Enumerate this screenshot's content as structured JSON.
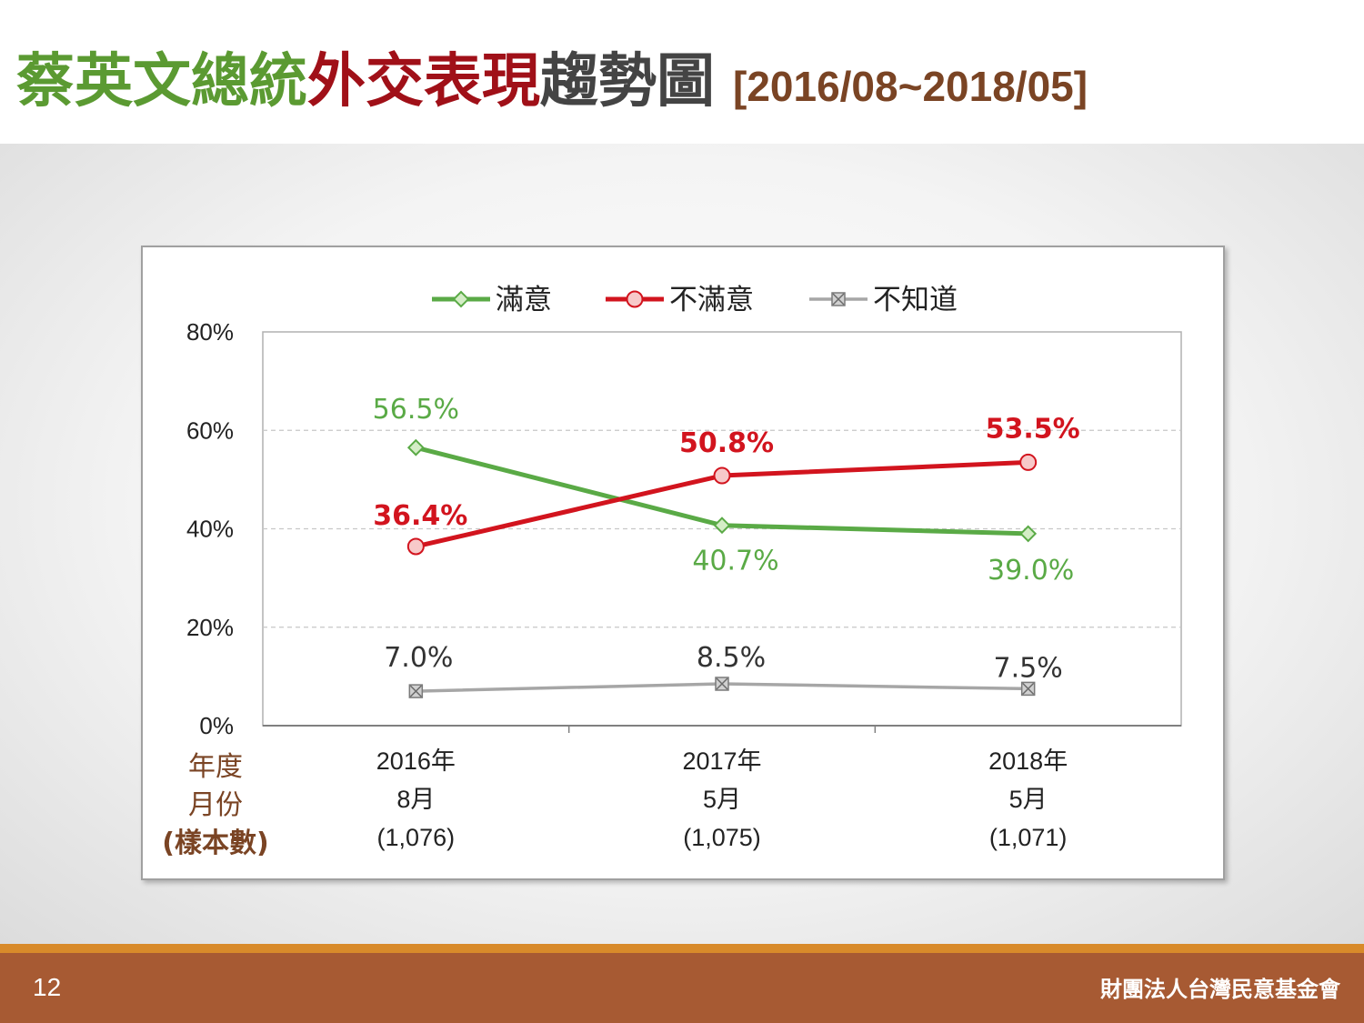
{
  "title": {
    "part1": "蔡英文總統",
    "part2": "外交表現",
    "part3": "趨勢圖",
    "range": "[2016/08~2018/05]"
  },
  "footer": {
    "page_number": "12",
    "organization": "財團法人台灣民意基金會"
  },
  "colors": {
    "satisfied": "#5aaa46",
    "dissatisfied": "#d2141e",
    "unknown": "#a6a6a6",
    "axis_caption": "#7a4424"
  },
  "chart_data": {
    "type": "line",
    "title": "",
    "xlabel": "",
    "ylabel": "",
    "ylim": [
      0,
      80
    ],
    "y_ticks": [
      "0%",
      "20%",
      "40%",
      "60%",
      "80%"
    ],
    "grid": true,
    "legend_position": "top",
    "categories": [
      [
        "2016年",
        "8月",
        "(1,076)"
      ],
      [
        "2017年",
        "5月",
        "(1,075)"
      ],
      [
        "2018年",
        "5月",
        "(1,071)"
      ]
    ],
    "row_caption": [
      "年度",
      "月份",
      "(樣本數)"
    ],
    "series": [
      {
        "name": "滿意",
        "key": "satisfied",
        "values": [
          56.5,
          40.7,
          39.0
        ],
        "labels": [
          "56.5%",
          "40.7%",
          "39.0%"
        ],
        "marker": "diamond"
      },
      {
        "name": "不滿意",
        "key": "dissatisfied",
        "values": [
          36.4,
          50.8,
          53.5
        ],
        "labels": [
          "36.4%",
          "50.8%",
          "53.5%"
        ],
        "marker": "circle"
      },
      {
        "name": "不知道",
        "key": "unknown",
        "values": [
          7.0,
          8.5,
          7.5
        ],
        "labels": [
          "7.0%",
          "8.5%",
          "7.5%"
        ],
        "marker": "x-square"
      }
    ]
  }
}
